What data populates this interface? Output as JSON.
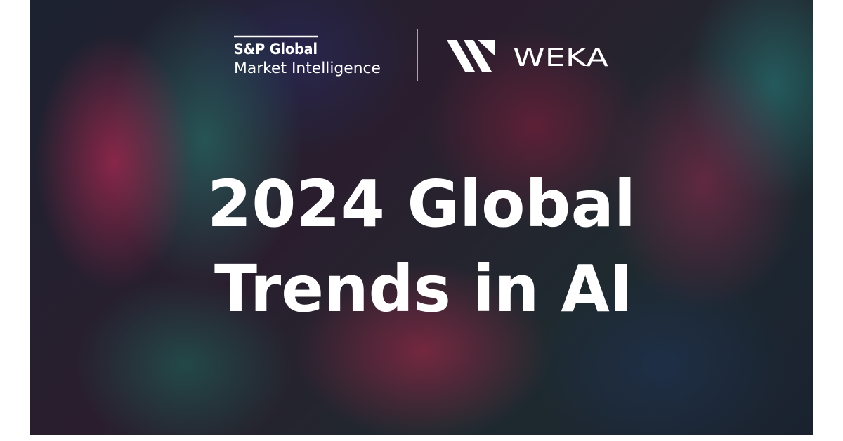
{
  "header": {
    "logos": [
      {
        "name": "S&P Global",
        "tagline": "Market Intelligence"
      },
      {
        "name": "WEKA"
      }
    ]
  },
  "title": {
    "lines": [
      "2024 Global",
      "Trends in AI"
    ]
  }
}
